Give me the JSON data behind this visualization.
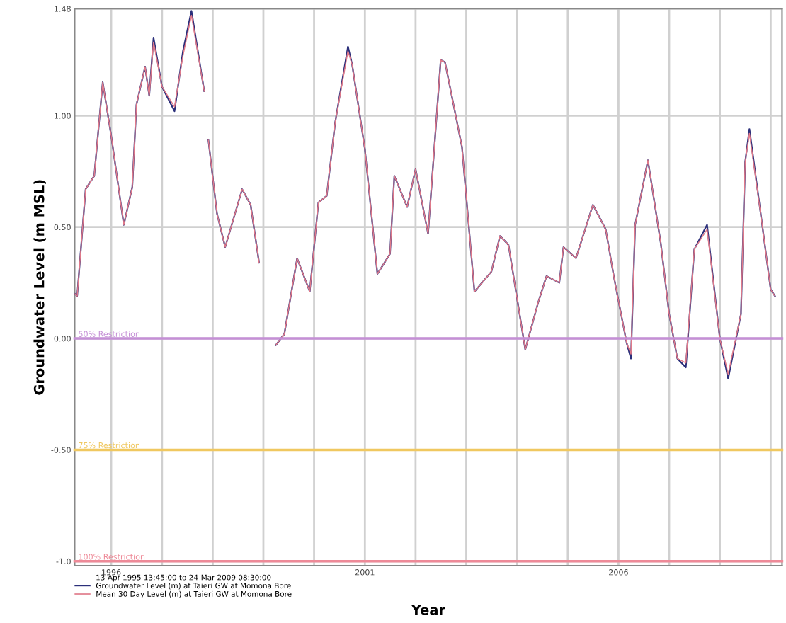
{
  "chart_data": {
    "type": "line",
    "xlabel": "Year",
    "ylabel": "Groundwater Level (m MSL)",
    "legend_title": "13-Apr-1995 13:45:00 to 24-Mar-2009 08:30:00",
    "series": [
      {
        "name": "Groundwater Level (m) at Taieri GW at Momona Bore",
        "color": "#2b2f7a",
        "x": [
          "1995-04-15",
          "1995-05",
          "1995-07",
          "1995-09",
          "1995-11",
          "1996-01",
          "1996-04",
          "1996-06",
          "1996-07",
          "1996-09",
          "1996-10",
          "1996-11",
          "1997-01",
          "1997-04",
          "1997-06",
          "1997-08",
          "1997-11",
          "1997-11-20",
          "1997-12",
          "1998-02",
          "1998-04",
          "1998-08",
          "1998-10",
          "1998-12",
          "1999-01",
          "1999-04",
          "1999-06",
          "1999-09",
          "1999-12",
          "2000-02",
          "2000-04",
          "2000-06",
          "2000-09",
          "2000-10",
          "2001-01",
          "2001-04",
          "2001-06",
          "2001-07",
          "2001-08",
          "2001-11",
          "2002-01",
          "2002-04",
          "2002-07",
          "2002-08",
          "2002-12",
          "2003-03",
          "2003-07",
          "2003-09",
          "2003-11",
          "2004-03",
          "2004-06",
          "2004-08",
          "2004-11",
          "2004-12",
          "2005-03",
          "2005-07",
          "2005-10",
          "2005-12",
          "2006-03",
          "2006-04",
          "2006-05",
          "2006-08",
          "2006-11",
          "2007-01",
          "2007-03",
          "2007-05",
          "2007-07",
          "2007-10",
          "2008-01",
          "2008-03",
          "2008-06",
          "2008-07",
          "2008-08",
          "2008-11",
          "2009-01",
          "2009-02"
        ],
        "values": [
          0.2,
          0.19,
          0.67,
          0.73,
          1.15,
          0.91,
          0.51,
          0.68,
          1.05,
          1.22,
          1.09,
          1.35,
          1.13,
          1.02,
          1.29,
          1.47,
          1.11,
          null,
          0.89,
          0.56,
          0.41,
          0.67,
          0.6,
          0.34,
          null,
          -0.03,
          0.02,
          0.36,
          0.21,
          0.61,
          0.64,
          0.97,
          1.31,
          1.23,
          0.85,
          0.29,
          0.35,
          0.38,
          0.73,
          0.59,
          0.76,
          0.47,
          1.25,
          1.24,
          0.86,
          0.21,
          0.3,
          0.46,
          0.42,
          -0.05,
          0.16,
          0.28,
          0.25,
          0.41,
          0.36,
          0.6,
          0.49,
          0.27,
          -0.02,
          -0.09,
          0.51,
          0.8,
          0.43,
          0.11,
          -0.09,
          -0.13,
          0.4,
          0.51,
          0.0,
          -0.18,
          0.11,
          0.79,
          0.94,
          0.51,
          0.22,
          0.19
        ]
      },
      {
        "name": "Mean 30 Day Level (m) at Taieri GW at Momona Bore",
        "color": "#e07a8a",
        "x": [
          "1995-04-15",
          "1995-05",
          "1995-07",
          "1995-09",
          "1995-11",
          "1996-01",
          "1996-04",
          "1996-06",
          "1996-07",
          "1996-09",
          "1996-10",
          "1996-11",
          "1997-01",
          "1997-04",
          "1997-06",
          "1997-08",
          "1997-11",
          "1997-11-20",
          "1997-12",
          "1998-02",
          "1998-04",
          "1998-08",
          "1998-10",
          "1998-12",
          "1999-01",
          "1999-04",
          "1999-06",
          "1999-09",
          "1999-12",
          "2000-02",
          "2000-04",
          "2000-06",
          "2000-09",
          "2000-10",
          "2001-01",
          "2001-04",
          "2001-06",
          "2001-07",
          "2001-08",
          "2001-11",
          "2002-01",
          "2002-04",
          "2002-07",
          "2002-08",
          "2002-12",
          "2003-03",
          "2003-07",
          "2003-09",
          "2003-11",
          "2004-03",
          "2004-06",
          "2004-08",
          "2004-11",
          "2004-12",
          "2005-03",
          "2005-07",
          "2005-10",
          "2005-12",
          "2006-03",
          "2006-04",
          "2006-05",
          "2006-08",
          "2006-11",
          "2007-01",
          "2007-03",
          "2007-05",
          "2007-07",
          "2007-10",
          "2008-01",
          "2008-03",
          "2008-06",
          "2008-07",
          "2008-08",
          "2008-11",
          "2009-01",
          "2009-02"
        ],
        "values": [
          0.2,
          0.19,
          0.67,
          0.73,
          1.15,
          0.91,
          0.51,
          0.68,
          1.05,
          1.22,
          1.09,
          1.33,
          1.13,
          1.04,
          1.27,
          1.45,
          1.11,
          null,
          0.89,
          0.56,
          0.41,
          0.67,
          0.6,
          0.34,
          null,
          -0.03,
          0.02,
          0.36,
          0.21,
          0.61,
          0.64,
          0.97,
          1.29,
          1.23,
          0.85,
          0.29,
          0.35,
          0.38,
          0.73,
          0.59,
          0.76,
          0.47,
          1.25,
          1.24,
          0.86,
          0.21,
          0.3,
          0.46,
          0.42,
          -0.05,
          0.16,
          0.28,
          0.25,
          0.41,
          0.36,
          0.6,
          0.49,
          0.27,
          -0.02,
          -0.07,
          0.51,
          0.8,
          0.43,
          0.11,
          -0.09,
          -0.11,
          0.4,
          0.49,
          0.0,
          -0.16,
          0.11,
          0.79,
          0.92,
          0.51,
          0.22,
          0.19
        ]
      }
    ],
    "xlim": [
      "1995-04-13",
      "2009-03-24"
    ],
    "xticks": [
      {
        "value": "1996-01-01",
        "label": "1996"
      },
      {
        "value": "1997-01-01",
        "label": null
      },
      {
        "value": "1998-01-01",
        "label": null
      },
      {
        "value": "1999-01-01",
        "label": null
      },
      {
        "value": "2000-01-01",
        "label": null
      },
      {
        "value": "2001-01-01",
        "label": "2001"
      },
      {
        "value": "2002-01-01",
        "label": null
      },
      {
        "value": "2003-01-01",
        "label": null
      },
      {
        "value": "2004-01-01",
        "label": null
      },
      {
        "value": "2005-01-01",
        "label": null
      },
      {
        "value": "2006-01-01",
        "label": "2006"
      },
      {
        "value": "2007-01-01",
        "label": null
      },
      {
        "value": "2008-01-01",
        "label": null
      },
      {
        "value": "2009-01-01",
        "label": null
      }
    ],
    "ylim": [
      -1.02,
      1.48
    ],
    "yticks": [
      {
        "value": -1.0,
        "label": "-1.0"
      },
      {
        "value": -0.5,
        "label": "-0.50"
      },
      {
        "value": 0.0,
        "label": "0.00"
      },
      {
        "value": 0.5,
        "label": "0.50"
      },
      {
        "value": 1.0,
        "label": "1.00"
      },
      {
        "value": 1.48,
        "label": "1.48"
      }
    ],
    "ref_lines": [
      {
        "axis": "y",
        "value": 0.0,
        "label": "50% Restriction",
        "color": "#c58fd6"
      },
      {
        "axis": "y",
        "value": -0.5,
        "label": "75% Restriction",
        "color": "#f0c860"
      },
      {
        "axis": "y",
        "value": -1.0,
        "label": "100% Restriction",
        "color": "#ee8a98"
      }
    ],
    "grid": true,
    "legend": "bottom left",
    "marker": "none",
    "line_style": "solid"
  }
}
